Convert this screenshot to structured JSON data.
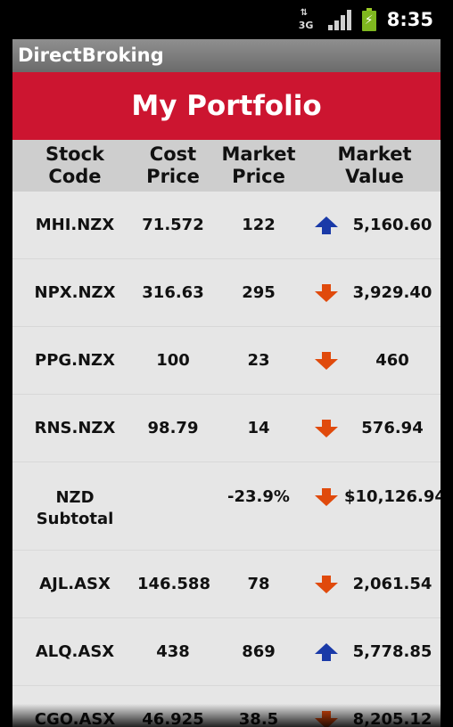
{
  "status_bar": {
    "network": "3G",
    "time": "8:35"
  },
  "app": {
    "title": "DirectBroking"
  },
  "banner": {
    "title": "My Portfolio"
  },
  "table": {
    "headers": [
      "Stock\nCode",
      "Cost\nPrice",
      "Market\nPrice",
      "Market Value"
    ],
    "rows": [
      {
        "code": "MHI.NZX",
        "cost": "71.572",
        "market": "122",
        "trend": "up",
        "value": "5,160.60"
      },
      {
        "code": "NPX.NZX",
        "cost": "316.63",
        "market": "295",
        "trend": "down",
        "value": "3,929.40"
      },
      {
        "code": "PPG.NZX",
        "cost": "100",
        "market": "23",
        "trend": "down",
        "value": "460"
      },
      {
        "code": "RNS.NZX",
        "cost": "98.79",
        "market": "14",
        "trend": "down",
        "value": "576.94"
      },
      {
        "code": "NZD\nSubtotal",
        "cost": "",
        "market": "-23.9%",
        "trend": "down",
        "value": "$10,126.94"
      },
      {
        "code": "AJL.ASX",
        "cost": "146.588",
        "market": "78",
        "trend": "down",
        "value": "2,061.54"
      },
      {
        "code": "ALQ.ASX",
        "cost": "438",
        "market": "869",
        "trend": "up",
        "value": "5,778.85"
      },
      {
        "code": "CGO.ASX",
        "cost": "46.925",
        "market": "38.5",
        "trend": "down",
        "value": "8,205.12"
      }
    ]
  },
  "colors": {
    "banner": "#cc1530",
    "up_arrow": "#1a3aa8",
    "down_arrow": "#e04a0c"
  }
}
